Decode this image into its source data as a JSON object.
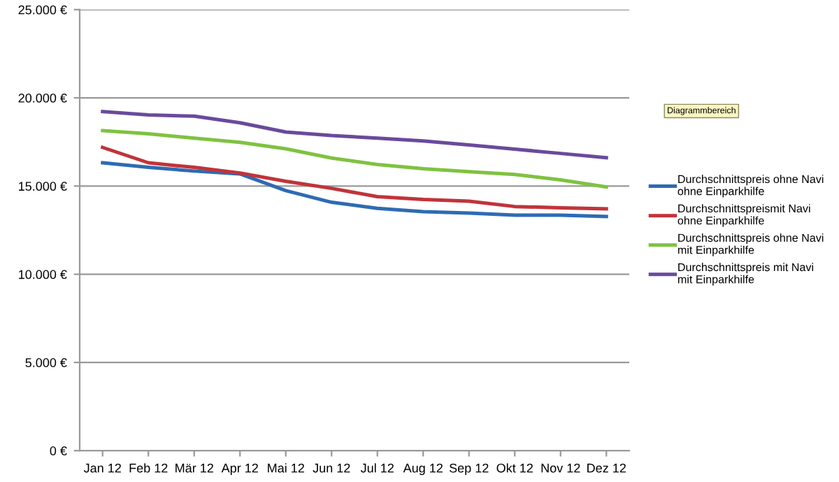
{
  "chart_data": {
    "type": "line",
    "categories": [
      "Jan 12",
      "Feb 12",
      "Mär 12",
      "Apr 12",
      "Mai 12",
      "Jun 12",
      "Jul 12",
      "Aug 12",
      "Sep 12",
      "Okt 12",
      "Nov 12",
      "Dez 12"
    ],
    "series": [
      {
        "name": "Durchschnittspreis ohne Navi\nohne Einparkhilfe",
        "color": "#2e6bb3",
        "values": [
          16320,
          16060,
          15850,
          15690,
          14740,
          14080,
          13740,
          13550,
          13470,
          13350,
          13350,
          13270
        ]
      },
      {
        "name": "Durchschnittspreismit Navi\nohne Einparkhilfe",
        "color": "#c0343a",
        "values": [
          17190,
          16320,
          16060,
          15740,
          15270,
          14870,
          14400,
          14240,
          14140,
          13840,
          13770,
          13710
        ]
      },
      {
        "name": "Durchschnittspreis ohne Navi\nmit Einparkhilfe",
        "color": "#7fc241",
        "values": [
          18140,
          17960,
          17720,
          17480,
          17110,
          16590,
          16220,
          15980,
          15820,
          15660,
          15350,
          14950
        ]
      },
      {
        "name": "Durchschnittspreis mit Navi\nmit Einparkhilfe",
        "color": "#6a4a9c",
        "values": [
          19220,
          19030,
          18960,
          18590,
          18060,
          17860,
          17720,
          17560,
          17330,
          17090,
          16850,
          16610
        ]
      }
    ],
    "ylim": [
      0,
      25000
    ],
    "yticks": [
      {
        "value": 0,
        "label": "0 €"
      },
      {
        "value": 5000,
        "label": "5.000 €"
      },
      {
        "value": 10000,
        "label": "10.000 €"
      },
      {
        "value": 15000,
        "label": "15.000 €"
      },
      {
        "value": 20000,
        "label": "20.000 €"
      },
      {
        "value": 25000,
        "label": "25.000 €"
      }
    ],
    "grid": "y",
    "legend": "right",
    "marker": "none",
    "line_style": "solid",
    "annotations": [
      "Diagrammbereich"
    ]
  }
}
